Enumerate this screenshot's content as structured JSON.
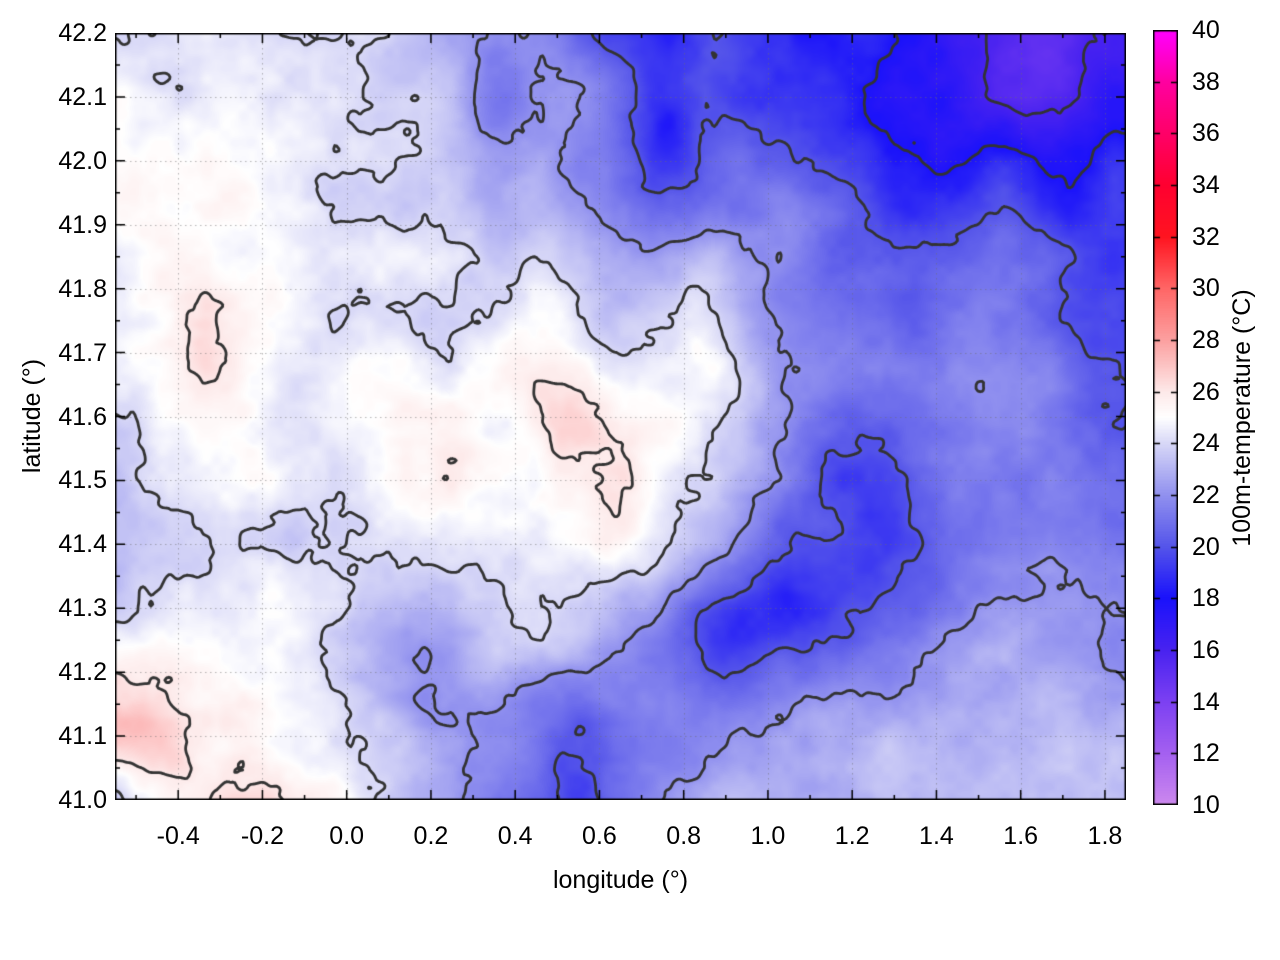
{
  "chart_data": {
    "type": "heatmap",
    "title": "",
    "x_axis": {
      "label": "longitude (°)",
      "range": [
        -0.55,
        1.85
      ],
      "tick_values": [
        -0.4,
        -0.2,
        0.0,
        0.2,
        0.4,
        0.6,
        0.8,
        1.0,
        1.2,
        1.4,
        1.6,
        1.8
      ],
      "tick_labels": [
        "-0.4",
        "-0.2",
        "0.0",
        "0.2",
        "0.4",
        "0.6",
        "0.8",
        "1.0",
        "1.2",
        "1.4",
        "1.6",
        "1.8"
      ],
      "minor_tick_step": 0.1,
      "grid": "dotted"
    },
    "y_axis": {
      "label": "latitude (°)",
      "range": [
        41.0,
        42.2
      ],
      "tick_values": [
        41.0,
        41.1,
        41.2,
        41.3,
        41.4,
        41.5,
        41.6,
        41.7,
        41.8,
        41.9,
        42.0,
        42.1,
        42.2
      ],
      "tick_labels": [
        "41.0",
        "41.1",
        "41.2",
        "41.3",
        "41.4",
        "41.5",
        "41.6",
        "41.7",
        "41.8",
        "41.9",
        "42.0",
        "42.1",
        "42.2"
      ],
      "minor_tick_step": 0.05,
      "grid": "dotted"
    },
    "colorbar": {
      "label": "100m-temperature (°C)",
      "range": [
        10,
        40
      ],
      "tick_values": [
        10,
        12,
        14,
        16,
        18,
        20,
        22,
        24,
        26,
        28,
        30,
        32,
        34,
        36,
        38,
        40
      ],
      "tick_labels": [
        "10",
        "12",
        "14",
        "16",
        "18",
        "20",
        "22",
        "24",
        "26",
        "28",
        "30",
        "32",
        "34",
        "36",
        "38",
        "40"
      ],
      "palette": [
        [
          10,
          "#cc88ee"
        ],
        [
          12,
          "#a460f0"
        ],
        [
          14,
          "#7c40f2"
        ],
        [
          16,
          "#4822f0"
        ],
        [
          18,
          "#1a12fb"
        ],
        [
          20,
          "#5555ea"
        ],
        [
          22,
          "#9191ef"
        ],
        [
          24,
          "#d8d8f7"
        ],
        [
          25,
          "#ffffff"
        ],
        [
          26,
          "#fde9e9"
        ],
        [
          28,
          "#fca0a0"
        ],
        [
          30,
          "#ff6666"
        ],
        [
          32,
          "#ff1420"
        ],
        [
          34,
          "#ff0030"
        ],
        [
          36,
          "#ff0068"
        ],
        [
          38,
          "#ff00a0"
        ],
        [
          40,
          "#ff00ff"
        ]
      ]
    },
    "contour_levels": [
      16,
      18,
      20,
      22,
      24,
      26
    ],
    "contour_color": "#333333",
    "field": {
      "units": "°C",
      "lon_start": -0.55,
      "lon_step": 0.1,
      "lat_start": 42.2,
      "lat_step": -0.1,
      "values": [
        [
          24.3,
          24.4,
          24.2,
          24.0,
          23.9,
          23.6,
          23.9,
          23.3,
          22.6,
          21.8,
          22.3,
          20.8,
          19.6,
          19.2,
          19.8,
          19.4,
          18.8,
          18.2,
          18.6,
          17.2,
          16.3,
          15.6,
          15.2,
          15.6,
          16.0
        ],
        [
          24.8,
          24.7,
          24.5,
          24.4,
          24.2,
          24.0,
          23.8,
          23.6,
          22.8,
          20.6,
          21.4,
          21.8,
          20.2,
          18.6,
          19.8,
          19.2,
          19.6,
          18.4,
          18.0,
          17.6,
          17.0,
          16.2,
          15.8,
          16.4,
          16.8
        ],
        [
          25.4,
          25.2,
          25.0,
          24.8,
          24.6,
          24.3,
          24.1,
          23.9,
          23.2,
          22.2,
          22.6,
          21.6,
          20.6,
          19.2,
          20.2,
          20.6,
          20.0,
          19.4,
          19.0,
          18.4,
          18.0,
          18.6,
          18.2,
          18.4,
          18.8
        ],
        [
          25.1,
          25.4,
          25.2,
          25.0,
          24.8,
          24.5,
          24.3,
          24.1,
          23.6,
          23.2,
          23.6,
          22.6,
          21.6,
          21.2,
          21.6,
          21.2,
          21.6,
          20.6,
          20.0,
          19.4,
          19.6,
          20.2,
          19.6,
          19.0,
          19.2
        ],
        [
          24.7,
          25.5,
          26.0,
          25.4,
          25.0,
          24.7,
          24.5,
          24.5,
          24.1,
          24.3,
          24.6,
          23.6,
          23.1,
          23.6,
          24.0,
          22.6,
          21.6,
          21.0,
          20.4,
          20.0,
          20.6,
          21.2,
          20.6,
          19.6,
          19.4
        ],
        [
          24.4,
          24.9,
          26.1,
          25.7,
          24.8,
          24.5,
          24.8,
          24.5,
          24.5,
          24.8,
          25.1,
          24.6,
          24.1,
          24.6,
          24.8,
          23.1,
          22.1,
          21.4,
          21.0,
          20.6,
          21.1,
          21.6,
          21.1,
          20.1,
          19.8
        ],
        [
          24.1,
          24.4,
          24.9,
          25.1,
          24.5,
          24.2,
          24.5,
          25.0,
          25.2,
          25.0,
          25.6,
          26.1,
          25.5,
          25.0,
          24.5,
          23.5,
          22.0,
          21.0,
          20.5,
          21.0,
          21.6,
          22.1,
          21.5,
          20.6,
          20.2
        ],
        [
          23.8,
          24.0,
          24.5,
          24.8,
          24.3,
          24.0,
          24.5,
          25.0,
          25.5,
          25.2,
          25.0,
          25.6,
          26.2,
          25.0,
          24.0,
          22.6,
          21.0,
          20.0,
          19.6,
          20.6,
          21.1,
          21.6,
          21.1,
          21.0,
          20.8
        ],
        [
          23.5,
          23.8,
          24.0,
          24.2,
          24.0,
          23.8,
          24.0,
          24.5,
          24.8,
          24.5,
          24.8,
          25.0,
          25.5,
          24.5,
          23.0,
          21.6,
          20.5,
          19.6,
          19.2,
          20.0,
          21.0,
          21.6,
          21.5,
          21.4,
          21.2
        ],
        [
          24.0,
          24.3,
          24.5,
          24.5,
          24.3,
          24.0,
          23.5,
          23.1,
          23.6,
          24.1,
          24.5,
          24.0,
          23.1,
          22.0,
          19.8,
          18.9,
          18.5,
          19.6,
          20.1,
          20.6,
          21.6,
          22.0,
          22.0,
          22.0,
          21.9
        ],
        [
          26.2,
          26.0,
          25.2,
          24.8,
          24.5,
          24.0,
          23.1,
          22.1,
          22.6,
          23.1,
          22.6,
          22.1,
          21.6,
          21.1,
          20.6,
          20.1,
          20.6,
          21.1,
          21.6,
          22.0,
          22.4,
          22.5,
          22.5,
          22.5,
          22.4
        ],
        [
          27.2,
          27.0,
          25.8,
          26.1,
          25.2,
          24.6,
          23.6,
          22.6,
          22.1,
          21.6,
          21.1,
          20.1,
          21.1,
          21.6,
          22.1,
          22.5,
          22.6,
          22.9,
          23.0,
          23.0,
          23.0,
          23.0,
          23.0,
          23.0,
          23.0
        ],
        [
          23.6,
          25.2,
          25.8,
          26.2,
          25.6,
          25.1,
          24.1,
          23.1,
          22.1,
          21.1,
          20.6,
          19.6,
          21.1,
          22.1,
          22.6,
          23.0,
          23.1,
          23.2,
          23.2,
          23.2,
          23.2,
          23.2,
          23.2,
          23.2,
          23.2
        ]
      ]
    }
  }
}
